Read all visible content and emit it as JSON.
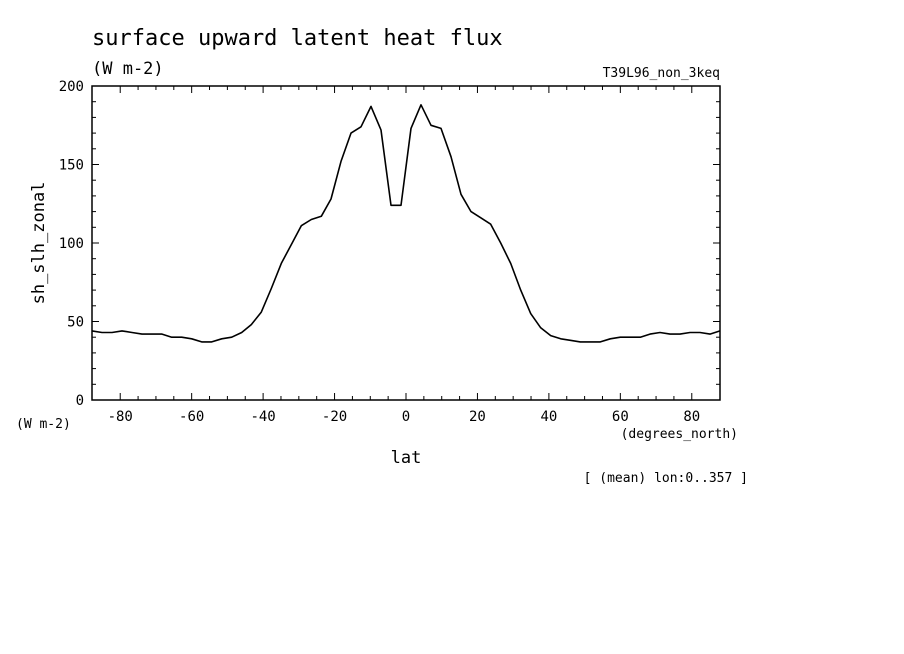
{
  "chart_data": {
    "type": "line",
    "title": "surface upward latent heat flux",
    "title_units": "(W m-2)",
    "run_label": "T39L96_non_3keq",
    "ylabel": "sh_slh_zonal",
    "y_units": "(W m-2)",
    "xlabel": "lat",
    "x_units": "(degrees_north)",
    "footnote": "[ (mean) lon:0..357 ]",
    "xlim": [
      -87.9,
      87.9
    ],
    "ylim": [
      0,
      200
    ],
    "x_ticks": [
      -80,
      -60,
      -40,
      -20,
      0,
      20,
      40,
      60,
      80
    ],
    "x_tick_labels": [
      "-80",
      "-60",
      "-40",
      "-20",
      "0",
      "20",
      "40",
      "60",
      "80"
    ],
    "y_ticks": [
      0,
      50,
      100,
      150,
      200
    ],
    "y_tick_labels": [
      "0",
      "50",
      "100",
      "150",
      "200"
    ],
    "grid": false,
    "line_color": "#000000",
    "series": [
      {
        "x": [
          -87.9,
          -85.1,
          -82.3,
          -79.5,
          -76.7,
          -73.9,
          -71.1,
          -68.3,
          -65.6,
          -62.8,
          -60.0,
          -57.2,
          -54.4,
          -51.6,
          -48.8,
          -46.0,
          -43.3,
          -40.5,
          -37.7,
          -34.9,
          -32.1,
          -29.3,
          -26.5,
          -23.7,
          -21.0,
          -18.2,
          -15.4,
          -12.6,
          -9.8,
          -7.0,
          -4.2,
          -1.4,
          1.4,
          4.2,
          7.0,
          9.8,
          12.6,
          15.4,
          18.2,
          21.0,
          23.7,
          26.5,
          29.3,
          32.1,
          34.9,
          37.7,
          40.5,
          43.3,
          46.0,
          48.8,
          51.6,
          54.4,
          57.2,
          60.0,
          62.8,
          65.6,
          68.3,
          71.1,
          73.9,
          76.7,
          79.5,
          82.3,
          85.1,
          87.9
        ],
        "values": [
          44,
          43,
          43,
          44,
          43,
          42,
          42,
          42,
          40,
          40,
          39,
          37,
          37,
          39,
          40,
          43,
          48,
          56,
          71,
          87,
          99,
          111,
          115,
          117,
          128,
          152,
          170,
          174,
          187,
          172,
          124,
          124,
          173,
          188,
          175,
          173,
          155,
          131,
          120,
          116,
          112,
          100,
          87,
          70,
          55,
          46,
          41,
          39,
          38,
          37,
          37,
          37,
          39,
          40,
          40,
          40,
          42,
          43,
          42,
          42,
          43,
          43,
          42,
          44
        ]
      }
    ]
  }
}
